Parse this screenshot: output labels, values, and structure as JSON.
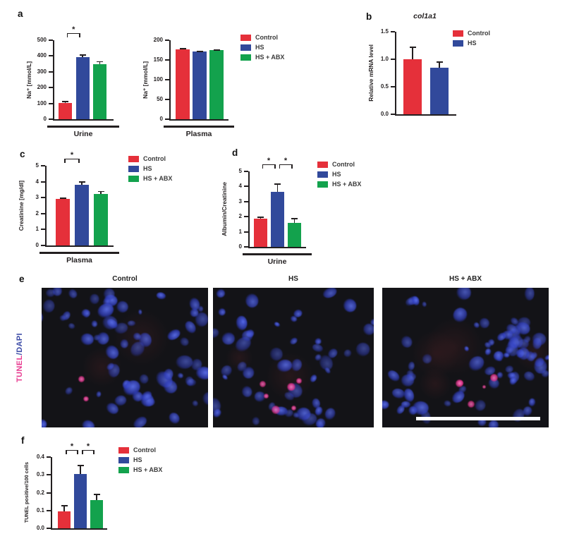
{
  "panels": {
    "a": "a",
    "b": "b",
    "c": "c",
    "d": "d",
    "e": "e",
    "f": "f"
  },
  "colors": {
    "ink": "#231f20",
    "control": "#e5303a",
    "hs": "#31499b",
    "hs_abx": "#13a24d",
    "tunel": "#e83a90",
    "dapi": "#3b4aa6"
  },
  "legends": {
    "a": [
      {
        "label": "Control",
        "color": "#e5303a"
      },
      {
        "label": "HS",
        "color": "#31499b"
      },
      {
        "label": "HS + ABX",
        "color": "#13a24d"
      }
    ],
    "b": [
      {
        "label": "Control",
        "color": "#e5303a"
      },
      {
        "label": "HS",
        "color": "#31499b"
      }
    ],
    "c": [
      {
        "label": "Control",
        "color": "#e5303a"
      },
      {
        "label": "HS",
        "color": "#31499b"
      },
      {
        "label": "HS + ABX",
        "color": "#13a24d"
      }
    ],
    "d": [
      {
        "label": "Control",
        "color": "#e5303a"
      },
      {
        "label": "HS",
        "color": "#31499b"
      },
      {
        "label": "HS + ABX",
        "color": "#13a24d"
      }
    ],
    "f": [
      {
        "label": "Control",
        "color": "#e5303a"
      },
      {
        "label": "HS",
        "color": "#31499b"
      },
      {
        "label": "HS + ABX",
        "color": "#13a24d"
      }
    ]
  },
  "chart_data": [
    {
      "id": "a-urine",
      "panel": "a",
      "type": "bar",
      "categories": [
        "Control",
        "HS",
        "HS + ABX"
      ],
      "values": [
        103,
        393,
        348
      ],
      "errors": [
        12,
        18,
        20
      ],
      "colors": [
        "#e5303a",
        "#31499b",
        "#13a24d"
      ],
      "title": "",
      "xlabel": "Urine",
      "ylabel": "Na⁺ [mmol/L]",
      "ylim": [
        0,
        500
      ],
      "yticks": [
        "0",
        "100",
        "200",
        "300",
        "400",
        "500"
      ],
      "sig": [
        {
          "from": 0,
          "to": 1,
          "label": "*"
        }
      ]
    },
    {
      "id": "a-plasma",
      "panel": "a",
      "type": "bar",
      "categories": [
        "Control",
        "HS",
        "HS + ABX"
      ],
      "values": [
        177,
        171,
        175
      ],
      "errors": [
        3,
        2,
        2
      ],
      "colors": [
        "#e5303a",
        "#31499b",
        "#13a24d"
      ],
      "title": "",
      "xlabel": "Plasma",
      "ylabel": "Na⁺ [mmol/L]",
      "ylim": [
        0,
        200
      ],
      "yticks": [
        "0",
        "50",
        "100",
        "150",
        "200"
      ],
      "sig": []
    },
    {
      "id": "b-col1a1",
      "panel": "b",
      "type": "bar",
      "categories": [
        "Control",
        "HS"
      ],
      "values": [
        1.0,
        0.85
      ],
      "errors": [
        0.23,
        0.11
      ],
      "colors": [
        "#e5303a",
        "#31499b"
      ],
      "title": "col1a1",
      "xlabel": "",
      "ylabel": "Relative mRNA level",
      "ylim": [
        0,
        1.5
      ],
      "yticks": [
        "0.0",
        "0.5",
        "1.0",
        "1.5"
      ],
      "sig": []
    },
    {
      "id": "c-creatinine",
      "panel": "c",
      "type": "bar",
      "categories": [
        "Control",
        "HS",
        "HS + ABX"
      ],
      "values": [
        2.9,
        3.8,
        3.25
      ],
      "errors": [
        0.12,
        0.22,
        0.18
      ],
      "colors": [
        "#e5303a",
        "#31499b",
        "#13a24d"
      ],
      "title": "",
      "xlabel": "Plasma",
      "ylabel": "Creatinine [mg/dl]",
      "ylim": [
        0,
        5
      ],
      "yticks": [
        "0",
        "1",
        "2",
        "3",
        "4",
        "5"
      ],
      "sig": [
        {
          "from": 0,
          "to": 1,
          "label": "*"
        }
      ]
    },
    {
      "id": "d-albumin",
      "panel": "d",
      "type": "bar",
      "categories": [
        "Control",
        "HS",
        "HS + ABX"
      ],
      "values": [
        1.87,
        3.65,
        1.58
      ],
      "errors": [
        0.15,
        0.55,
        0.35
      ],
      "colors": [
        "#e5303a",
        "#31499b",
        "#13a24d"
      ],
      "title": "",
      "xlabel": "Urine",
      "ylabel": "Albumin/Creatinine",
      "ylim": [
        0,
        5
      ],
      "yticks": [
        "0",
        "1",
        "2",
        "3",
        "4",
        "5"
      ],
      "sig": [
        {
          "from": 0,
          "to": 1,
          "label": "*"
        },
        {
          "from": 1,
          "to": 2,
          "label": "*"
        }
      ]
    },
    {
      "id": "f-tunel",
      "panel": "f",
      "type": "bar",
      "categories": [
        "Control",
        "HS",
        "HS + ABX"
      ],
      "values": [
        0.095,
        0.305,
        0.16
      ],
      "errors": [
        0.035,
        0.05,
        0.035
      ],
      "colors": [
        "#e5303a",
        "#31499b",
        "#13a24d"
      ],
      "title": "",
      "xlabel": "",
      "ylabel": "TUNEL positive/100 cells",
      "ylim": [
        0,
        0.4
      ],
      "yticks": [
        "0.0",
        "0.1",
        "0.2",
        "0.3",
        "0.4"
      ],
      "sig": [
        {
          "from": 0,
          "to": 1,
          "label": "*"
        },
        {
          "from": 1,
          "to": 2,
          "label": "*"
        }
      ]
    }
  ],
  "microscopy": {
    "row_label": {
      "tunel": "TUNEL",
      "slash": "/",
      "dapi": "DAPI",
      "tunel_color": "#e83a90",
      "dapi_color": "#3b4aa6"
    },
    "images": [
      {
        "title": "Control",
        "nuclei": 72,
        "tunel_spots": 2,
        "faint_spots": 2,
        "seed": 7,
        "scale_bar": false
      },
      {
        "title": "HS",
        "nuclei": 60,
        "tunel_spots": 6,
        "faint_spots": 2,
        "seed": 19,
        "scale_bar": false
      },
      {
        "title": "HS + ABX",
        "nuclei": 74,
        "tunel_spots": 5,
        "faint_spots": 4,
        "seed": 41,
        "scale_bar": true
      }
    ]
  }
}
